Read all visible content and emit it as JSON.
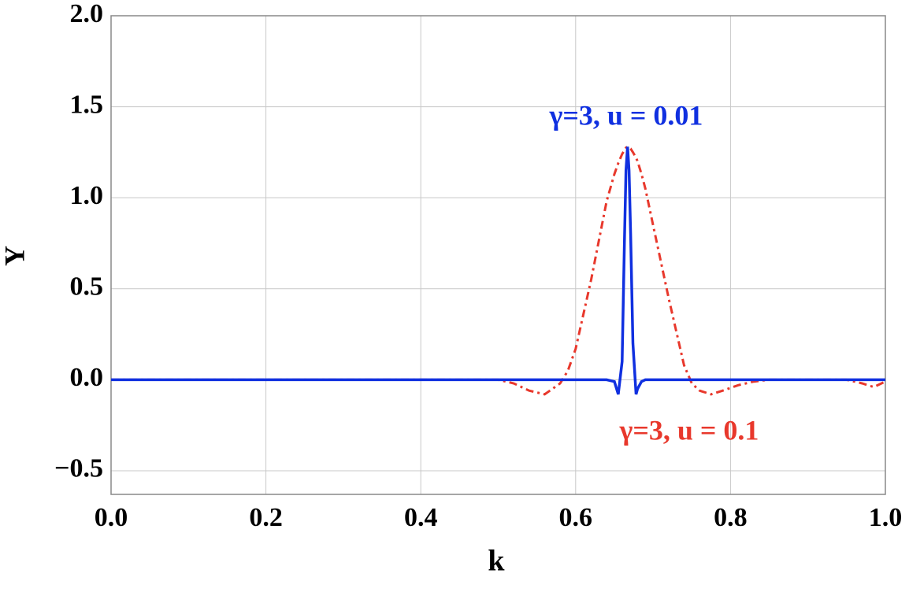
{
  "chart_data": {
    "type": "line",
    "xlabel": "k",
    "ylabel": "Υ",
    "x": [
      0,
      0.1,
      0.2,
      0.3,
      0.4,
      0.45,
      0.5,
      0.52,
      0.54,
      0.56,
      0.58,
      0.59,
      0.6,
      0.62,
      0.64,
      0.65,
      0.655,
      0.66,
      0.663,
      0.665,
      0.667,
      0.669,
      0.671,
      0.674,
      0.678,
      0.68,
      0.685,
      0.69,
      0.7,
      0.72,
      0.74,
      0.75,
      0.76,
      0.775,
      0.79,
      0.81,
      0.83,
      0.85,
      0.9,
      0.95,
      0.97,
      0.985,
      1.0
    ],
    "series": [
      {
        "name": "γ=3, u = 0.1",
        "color": "#e8382c",
        "dash": "dashdot",
        "values": [
          0,
          0,
          0,
          0,
          0,
          0,
          0,
          -0.02,
          -0.06,
          -0.08,
          -0.02,
          0.05,
          0.17,
          0.55,
          0.98,
          1.13,
          1.19,
          1.24,
          1.26,
          1.275,
          1.28,
          1.275,
          1.27,
          1.25,
          1.22,
          1.2,
          1.13,
          1.05,
          0.85,
          0.45,
          0.08,
          -0.02,
          -0.06,
          -0.08,
          -0.06,
          -0.03,
          -0.01,
          0,
          0,
          0,
          -0.02,
          -0.04,
          -0.01
        ]
      },
      {
        "name": "γ=3, u = 0.01",
        "color": "#1030e0",
        "dash": "solid",
        "values": [
          0,
          0,
          0,
          0,
          0,
          0,
          0,
          0,
          0,
          0,
          0,
          0,
          0,
          0,
          0,
          -0.01,
          -0.08,
          0.1,
          0.75,
          1.15,
          1.28,
          1.15,
          0.8,
          0.2,
          -0.08,
          -0.05,
          -0.01,
          0,
          0,
          0,
          0,
          0,
          0,
          0,
          0,
          0,
          0,
          0,
          0,
          0,
          0,
          0,
          0
        ]
      }
    ],
    "xlim": [
      0,
      1
    ],
    "ylim": [
      -0.63,
      2.0
    ],
    "xticks": [
      {
        "value": 0,
        "label": "0.0"
      },
      0.2,
      0.4,
      0.6,
      0.8,
      {
        "value": 1,
        "label": "1.0"
      }
    ],
    "yticks": [
      {
        "value": -0.5,
        "label": "−0.5"
      },
      {
        "value": 0,
        "label": "0.0"
      },
      0.5,
      {
        "value": 1,
        "label": "1.0"
      },
      1.5,
      {
        "value": 2,
        "label": "2.0"
      }
    ],
    "grid": true
  }
}
